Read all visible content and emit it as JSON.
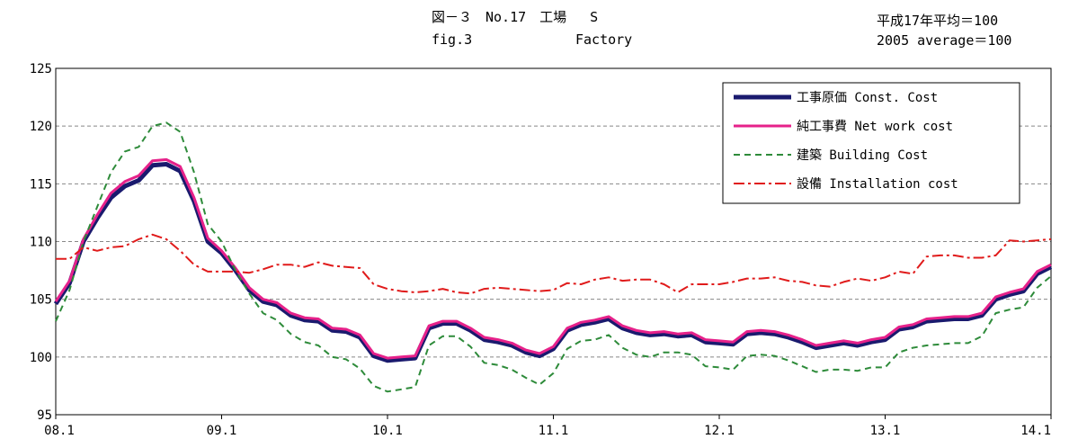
{
  "header": {
    "title_prefix": "図－３　No.17　工場",
    "title_suffix": "S",
    "title_en_prefix": "fig.3",
    "title_en_suffix": "Factory",
    "base_ja": "平成17年平均＝100",
    "base_en": "2005 average＝100"
  },
  "chart_data": {
    "type": "line",
    "title": "図－３　No.17　工場　S",
    "subtitle": "fig.3　Factory",
    "note": [
      "平成17年平均＝100",
      "2005 average＝100"
    ],
    "xlabel": "",
    "ylabel": "",
    "x_tick_labels": [
      "08.1",
      "09.1",
      "10.1",
      "11.1",
      "12.1",
      "13.1",
      "14.1"
    ],
    "y_ticks": [
      95,
      100,
      105,
      110,
      115,
      120,
      125
    ],
    "ylim": [
      95,
      125
    ],
    "grid": true,
    "legend_position": "top-right",
    "series": [
      {
        "name": "工事原価 Const. Cost",
        "color": "#1a1a6e",
        "style": "solid-thick",
        "values": [
          104.6,
          106.4,
          110.0,
          112.0,
          113.8,
          114.8,
          115.3,
          116.6,
          116.7,
          116.1,
          113.5,
          110.0,
          109.0,
          107.5,
          105.8,
          104.8,
          104.5,
          103.6,
          103.2,
          103.1,
          102.3,
          102.2,
          101.7,
          100.1,
          99.7,
          99.8,
          99.9,
          102.5,
          102.9,
          102.9,
          102.3,
          101.5,
          101.3,
          101.0,
          100.4,
          100.1,
          100.7,
          102.3,
          102.8,
          103.0,
          103.3,
          102.5,
          102.1,
          101.9,
          102.0,
          101.8,
          101.9,
          101.3,
          101.2,
          101.1,
          102.0,
          102.1,
          102.0,
          101.7,
          101.3,
          100.8,
          101.0,
          101.2,
          101.0,
          101.3,
          101.5,
          102.4,
          102.6,
          103.1,
          103.2,
          103.3,
          103.3,
          103.6,
          105.0,
          105.4,
          105.7,
          107.2,
          107.8
        ]
      },
      {
        "name": "純工事費 Net work cost",
        "color": "#e6218a",
        "style": "solid",
        "values": [
          104.8,
          106.6,
          110.2,
          112.3,
          114.2,
          115.2,
          115.7,
          117.0,
          117.1,
          116.5,
          113.8,
          110.3,
          109.2,
          107.7,
          106.0,
          105.0,
          104.7,
          103.8,
          103.4,
          103.3,
          102.5,
          102.4,
          101.9,
          100.3,
          99.9,
          100.0,
          100.1,
          102.7,
          103.1,
          103.1,
          102.5,
          101.7,
          101.5,
          101.2,
          100.6,
          100.3,
          100.9,
          102.5,
          103.0,
          103.2,
          103.5,
          102.7,
          102.3,
          102.1,
          102.2,
          102.0,
          102.1,
          101.5,
          101.4,
          101.3,
          102.2,
          102.3,
          102.2,
          101.9,
          101.5,
          101.0,
          101.2,
          101.4,
          101.2,
          101.5,
          101.7,
          102.6,
          102.8,
          103.3,
          103.4,
          103.5,
          103.5,
          103.8,
          105.2,
          105.6,
          105.9,
          107.4,
          108.0
        ]
      },
      {
        "name": "建築 Building Cost",
        "color": "#2e8b3a",
        "style": "dashed",
        "values": [
          103.1,
          105.8,
          110.0,
          113.0,
          116.0,
          117.8,
          118.2,
          120.0,
          120.3,
          119.5,
          116.0,
          111.5,
          110.0,
          107.5,
          105.5,
          103.8,
          103.2,
          102.0,
          101.3,
          101.0,
          100.0,
          99.8,
          99.0,
          97.5,
          97.0,
          97.2,
          97.4,
          101.0,
          101.8,
          101.8,
          100.9,
          99.5,
          99.3,
          98.9,
          98.2,
          97.6,
          98.6,
          100.7,
          101.4,
          101.5,
          101.9,
          100.8,
          100.2,
          100.0,
          100.4,
          100.4,
          100.2,
          99.2,
          99.1,
          98.9,
          100.1,
          100.2,
          100.1,
          99.7,
          99.2,
          98.7,
          98.9,
          98.9,
          98.8,
          99.1,
          99.1,
          100.4,
          100.8,
          101.0,
          101.1,
          101.2,
          101.2,
          101.8,
          103.8,
          104.1,
          104.3,
          106.0,
          107.0
        ]
      },
      {
        "name": "設備 Installation cost",
        "color": "#e01b1b",
        "style": "dash-dot",
        "values": [
          108.5,
          108.5,
          109.5,
          109.2,
          109.5,
          109.6,
          110.2,
          110.6,
          110.2,
          109.2,
          108.0,
          107.4,
          107.4,
          107.4,
          107.3,
          107.6,
          108.0,
          108.0,
          107.8,
          108.2,
          107.9,
          107.8,
          107.7,
          106.3,
          105.9,
          105.7,
          105.6,
          105.7,
          105.9,
          105.6,
          105.5,
          105.9,
          106.0,
          105.9,
          105.8,
          105.7,
          105.8,
          106.4,
          106.3,
          106.7,
          106.9,
          106.6,
          106.7,
          106.7,
          106.3,
          105.6,
          106.3,
          106.3,
          106.3,
          106.5,
          106.8,
          106.8,
          106.9,
          106.6,
          106.5,
          106.2,
          106.1,
          106.5,
          106.8,
          106.6,
          106.9,
          107.4,
          107.2,
          108.7,
          108.8,
          108.8,
          108.6,
          108.6,
          108.8,
          110.1,
          110.0,
          110.1,
          110.2
        ]
      }
    ]
  }
}
